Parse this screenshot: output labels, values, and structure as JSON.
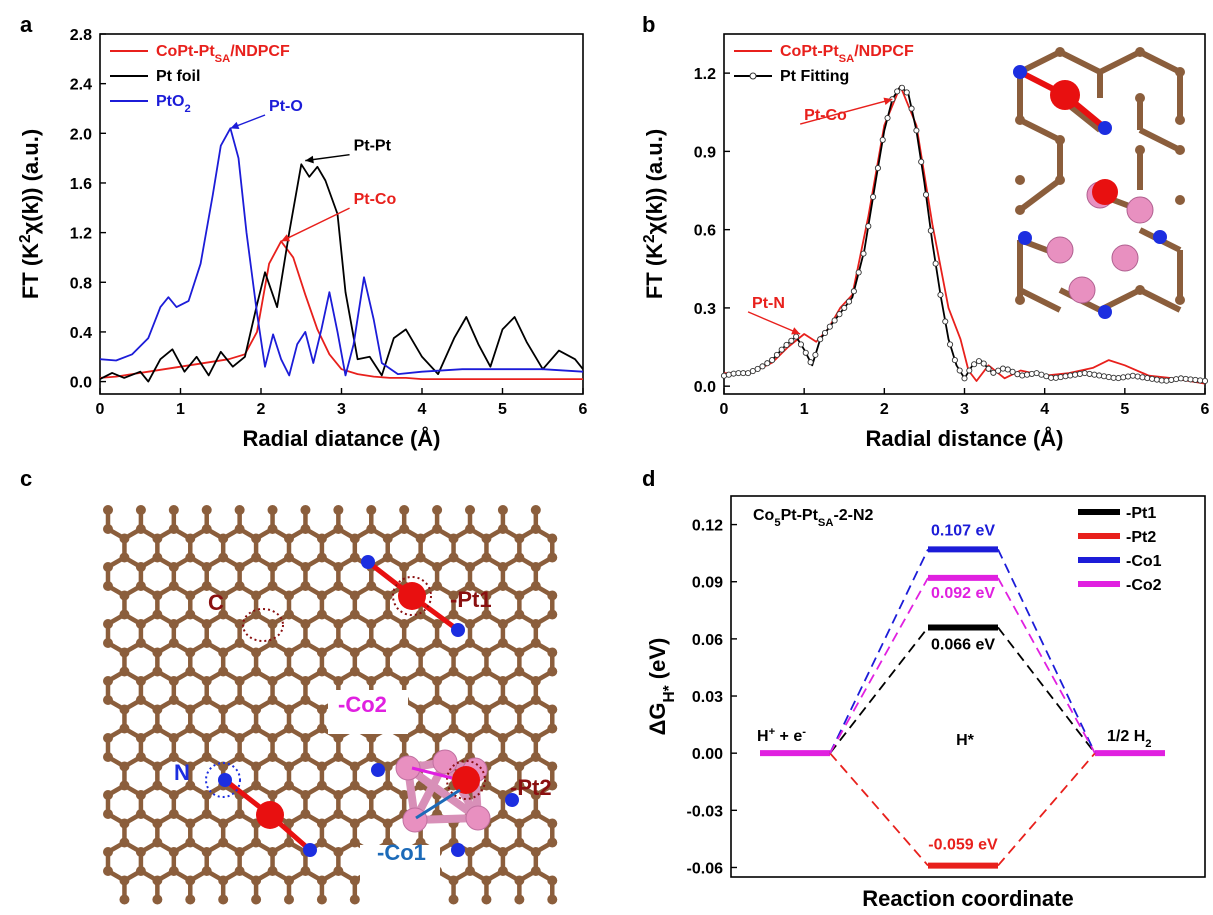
{
  "panels": {
    "a": "a",
    "b": "b",
    "c": "c",
    "d": "d"
  },
  "colors": {
    "red": "#e8201c",
    "black": "#000000",
    "blue": "#1c1cd8",
    "magenta": "#e020e0",
    "carbon": "#8b5e3c",
    "nitrogen": "#1c2ee0",
    "pt": "#e81010",
    "co": "#e890c0",
    "darkred": "#8a1010"
  },
  "chart_data": [
    {
      "id": "a",
      "type": "line",
      "xlabel": "Radial diatance (Å)",
      "ylabel_parts": {
        "pre": "FT (K",
        "sup": "2",
        "mid": "χ(k)) (a.u.)"
      },
      "xlim": [
        0,
        6
      ],
      "ylim": [
        -0.1,
        2.8
      ],
      "xticks": [
        "0",
        "1",
        "2",
        "3",
        "4",
        "5",
        "6"
      ],
      "yticks": [
        "0.0",
        "0.4",
        "0.8",
        "1.2",
        "1.6",
        "2.0",
        "2.4",
        "2.8"
      ],
      "legend": [
        {
          "name_pre": "CoPt-Pt",
          "name_sub": "SA",
          "name_post": "/NDPCF",
          "color": "#e8201c"
        },
        {
          "name_pre": "Pt foil",
          "name_sub": "",
          "name_post": "",
          "color": "#000000"
        },
        {
          "name_pre": "PtO",
          "name_sub": "2",
          "name_post": "",
          "color": "#1c1cd8"
        }
      ],
      "annotations": [
        {
          "text": "Pt-O",
          "color": "#1c1cd8",
          "target": [
            1.62,
            2.04
          ],
          "label_at": [
            2.1,
            2.18
          ]
        },
        {
          "text": "Pt-Pt",
          "color": "#000000",
          "target": [
            2.55,
            1.78
          ],
          "label_at": [
            3.15,
            1.86
          ]
        },
        {
          "text": "Pt-Co",
          "color": "#e8201c",
          "target": [
            2.25,
            1.13
          ],
          "label_at": [
            3.15,
            1.43
          ]
        }
      ],
      "series": [
        {
          "name": "CoPt-PtSA/NDPCF",
          "color": "#e8201c",
          "x": [
            0,
            0.2,
            0.4,
            0.6,
            0.8,
            1.0,
            1.2,
            1.4,
            1.6,
            1.8,
            1.95,
            2.1,
            2.25,
            2.4,
            2.55,
            2.7,
            2.85,
            3.0,
            3.2,
            3.4,
            3.6,
            3.8,
            4.0,
            4.5,
            5.0,
            5.5,
            6.0
          ],
          "y": [
            0.03,
            0.04,
            0.06,
            0.08,
            0.1,
            0.12,
            0.14,
            0.16,
            0.18,
            0.22,
            0.4,
            0.95,
            1.13,
            1.0,
            0.7,
            0.42,
            0.22,
            0.1,
            0.06,
            0.04,
            0.03,
            0.03,
            0.02,
            0.02,
            0.02,
            0.02,
            0.02
          ]
        },
        {
          "name": "Pt foil",
          "color": "#000000",
          "x": [
            0,
            0.15,
            0.3,
            0.5,
            0.6,
            0.75,
            0.9,
            1.05,
            1.2,
            1.35,
            1.5,
            1.65,
            1.8,
            1.95,
            2.05,
            2.2,
            2.35,
            2.5,
            2.6,
            2.7,
            2.8,
            2.95,
            3.05,
            3.2,
            3.35,
            3.5,
            3.65,
            3.8,
            4.0,
            4.2,
            4.4,
            4.55,
            4.7,
            4.85,
            5.0,
            5.15,
            5.3,
            5.5,
            5.7,
            5.9,
            6.0
          ],
          "y": [
            0.02,
            0.07,
            0.03,
            0.08,
            0.0,
            0.18,
            0.26,
            0.08,
            0.2,
            0.05,
            0.24,
            0.12,
            0.2,
            0.62,
            0.88,
            0.6,
            1.2,
            1.75,
            1.65,
            1.73,
            1.62,
            1.35,
            0.72,
            0.18,
            0.2,
            0.05,
            0.35,
            0.42,
            0.2,
            0.06,
            0.35,
            0.52,
            0.3,
            0.12,
            0.42,
            0.52,
            0.32,
            0.1,
            0.25,
            0.18,
            0.1
          ]
        },
        {
          "name": "PtO2",
          "color": "#1c1cd8",
          "x": [
            0,
            0.2,
            0.4,
            0.6,
            0.75,
            0.85,
            0.95,
            1.1,
            1.25,
            1.4,
            1.5,
            1.62,
            1.72,
            1.82,
            1.95,
            2.05,
            2.15,
            2.25,
            2.35,
            2.45,
            2.55,
            2.65,
            2.75,
            2.85,
            2.95,
            3.05,
            3.15,
            3.28,
            3.4,
            3.5,
            3.7,
            4.0,
            4.5,
            5.0,
            5.5,
            6.0
          ],
          "y": [
            0.18,
            0.17,
            0.22,
            0.35,
            0.6,
            0.68,
            0.6,
            0.65,
            0.95,
            1.5,
            1.9,
            2.04,
            1.8,
            1.2,
            0.55,
            0.12,
            0.38,
            0.18,
            0.05,
            0.3,
            0.4,
            0.15,
            0.42,
            0.72,
            0.4,
            0.05,
            0.3,
            0.84,
            0.5,
            0.15,
            0.06,
            0.08,
            0.1,
            0.1,
            0.1,
            0.08
          ]
        }
      ]
    },
    {
      "id": "b",
      "type": "line",
      "xlabel": "Radial distance (Å)",
      "ylabel_parts": {
        "pre": "FT (K",
        "sup": "2",
        "mid": "χ(k)) (a.u.)"
      },
      "xlim": [
        0,
        6
      ],
      "ylim": [
        -0.03,
        1.35
      ],
      "xticks": [
        "0",
        "1",
        "2",
        "3",
        "4",
        "5",
        "6"
      ],
      "yticks": [
        "0.0",
        "0.3",
        "0.6",
        "0.9",
        "1.2"
      ],
      "legend": [
        {
          "name_pre": "CoPt-Pt",
          "name_sub": "SA",
          "name_post": "/NDPCF",
          "color": "#e8201c"
        },
        {
          "name_pre": "Pt Fitting",
          "name_sub": "",
          "name_post": "",
          "color": "#000000"
        }
      ],
      "annotations": [
        {
          "text": "Pt-Co",
          "color": "#e8201c",
          "target": [
            2.1,
            1.1
          ],
          "label_at": [
            1.0,
            1.02
          ]
        },
        {
          "text": "Pt-N",
          "color": "#e8201c",
          "target": [
            0.95,
            0.2
          ],
          "label_at": [
            0.35,
            0.3
          ]
        }
      ],
      "series": [
        {
          "name": "CoPt-PtSA/NDPCF",
          "color": "#e8201c",
          "x": [
            0,
            0.2,
            0.4,
            0.6,
            0.8,
            1.0,
            1.15,
            1.3,
            1.45,
            1.6,
            1.8,
            2.0,
            2.2,
            2.4,
            2.6,
            2.8,
            2.95,
            3.05,
            3.15,
            3.3,
            3.5,
            3.7,
            4.0,
            4.3,
            4.6,
            4.8,
            5.0,
            5.3,
            5.6,
            6.0
          ],
          "y": [
            0.05,
            0.05,
            0.06,
            0.09,
            0.15,
            0.2,
            0.17,
            0.22,
            0.3,
            0.35,
            0.65,
            1.0,
            1.15,
            1.0,
            0.62,
            0.3,
            0.18,
            0.06,
            0.02,
            0.08,
            0.03,
            0.06,
            0.04,
            0.05,
            0.07,
            0.1,
            0.08,
            0.04,
            0.03,
            0.01
          ]
        },
        {
          "name": "Pt Fitting",
          "color": "#000000",
          "x": [
            0,
            0.15,
            0.3,
            0.45,
            0.6,
            0.75,
            0.9,
            1.0,
            1.1,
            1.2,
            1.3,
            1.45,
            1.6,
            1.75,
            1.9,
            2.0,
            2.1,
            2.2,
            2.3,
            2.4,
            2.5,
            2.6,
            2.7,
            2.8,
            2.9,
            3.0,
            3.1,
            3.2,
            3.35,
            3.5,
            3.7,
            3.9,
            4.1,
            4.3,
            4.5,
            4.7,
            4.9,
            5.1,
            5.3,
            5.5,
            5.7,
            6.0
          ],
          "y": [
            0.04,
            0.05,
            0.05,
            0.07,
            0.1,
            0.15,
            0.19,
            0.14,
            0.08,
            0.18,
            0.22,
            0.28,
            0.34,
            0.52,
            0.8,
            0.98,
            1.1,
            1.15,
            1.12,
            0.98,
            0.78,
            0.55,
            0.35,
            0.18,
            0.08,
            0.03,
            0.08,
            0.1,
            0.05,
            0.07,
            0.04,
            0.05,
            0.03,
            0.04,
            0.05,
            0.04,
            0.03,
            0.04,
            0.03,
            0.02,
            0.03,
            0.02
          ]
        }
      ]
    },
    {
      "id": "d",
      "type": "line",
      "ylabel_parts": {
        "pre": "ΔG",
        "sub": "H*",
        "post": " (eV)"
      },
      "xlabel": "Reaction coordinate",
      "ylim": [
        -0.065,
        0.135
      ],
      "yticks": [
        "0.12",
        "0.09",
        "0.06",
        "0.03",
        "0.00",
        "-0.03",
        "-0.06"
      ],
      "title_parts": {
        "pre": "Co",
        "sub1": "5",
        "mid": "Pt-Pt",
        "sub2": "SA",
        "post": "-2-N2"
      },
      "categories": [
        "H⁺ + e⁻",
        "H*",
        "1/2 H₂"
      ],
      "state_labels": {
        "left": {
          "pre": "H",
          "sup1": "+",
          "mid": " + e",
          "sup2": "-"
        },
        "middle": "H*",
        "right": {
          "pre": "1/2 H",
          "sub": "2"
        }
      },
      "legend": [
        {
          "name": "-Pt1",
          "color": "#000000"
        },
        {
          "name": "-Pt2",
          "color": "#e8201c"
        },
        {
          "name": "-Co1",
          "color": "#1c1cd8"
        },
        {
          "name": "-Co2",
          "color": "#e020e0"
        }
      ],
      "series": [
        {
          "name": "-Pt1",
          "color": "#000000",
          "values": [
            0,
            0.066,
            0
          ],
          "label": "0.066 eV"
        },
        {
          "name": "-Pt2",
          "color": "#e8201c",
          "values": [
            0,
            -0.059,
            0
          ],
          "label": "-0.059 eV"
        },
        {
          "name": "-Co1",
          "color": "#1c1cd8",
          "values": [
            0,
            0.107,
            0
          ],
          "label": "0.107 eV"
        },
        {
          "name": "-Co2",
          "color": "#e020e0",
          "values": [
            0,
            0.092,
            0
          ],
          "label": "0.092 eV"
        }
      ]
    }
  ],
  "structure_c": {
    "labels": {
      "c": "C",
      "pt1": "-Pt1",
      "co2": "-Co2",
      "n": "N",
      "pt2": "-Pt2",
      "co1": "-Co1"
    }
  }
}
